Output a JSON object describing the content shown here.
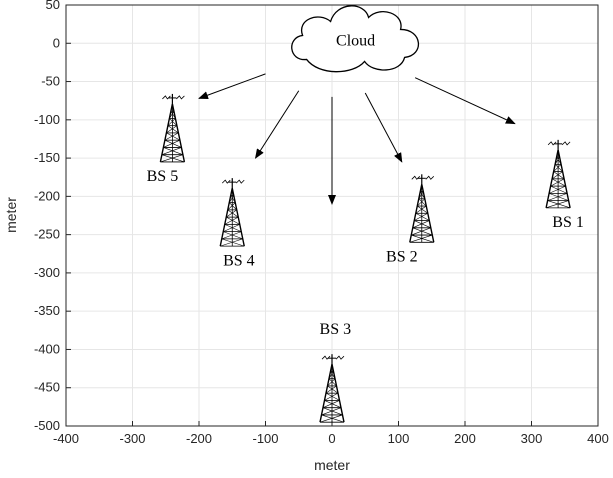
{
  "chart_data": {
    "type": "scatter",
    "title": "",
    "xlabel": "meter",
    "ylabel": "meter",
    "xlim": [
      -400,
      400
    ],
    "ylim": [
      -500,
      50
    ],
    "xticks": [
      -400,
      -300,
      -200,
      -100,
      0,
      100,
      200,
      300,
      400
    ],
    "yticks": [
      50,
      0,
      -50,
      -100,
      -150,
      -200,
      -250,
      -300,
      -350,
      -400,
      -450,
      -500
    ],
    "grid": true,
    "cloud": {
      "label": "Cloud",
      "x": 40,
      "y": 5
    },
    "base_stations": [
      {
        "label": "BS 1",
        "x": 340,
        "y": -215,
        "label_x": 355,
        "label_y": -240
      },
      {
        "label": "BS 2",
        "x": 135,
        "y": -260,
        "label_x": 105,
        "label_y": -285
      },
      {
        "label": "BS 3",
        "x": 0,
        "y": -495,
        "label_x": 5,
        "label_y": -380
      },
      {
        "label": "BS 4",
        "x": -150,
        "y": -265,
        "label_x": -140,
        "label_y": -290
      },
      {
        "label": "BS 5",
        "x": -240,
        "y": -155,
        "label_x": -255,
        "label_y": -180
      }
    ],
    "links": [
      {
        "from": [
          -100,
          -40
        ],
        "to": [
          -200,
          -72
        ]
      },
      {
        "from": [
          -50,
          -62
        ],
        "to": [
          -115,
          -150
        ]
      },
      {
        "from": [
          0,
          -70
        ],
        "to": [
          0,
          -210
        ]
      },
      {
        "from": [
          50,
          -65
        ],
        "to": [
          105,
          -155
        ]
      },
      {
        "from": [
          125,
          -45
        ],
        "to": [
          275,
          -105
        ]
      }
    ]
  }
}
